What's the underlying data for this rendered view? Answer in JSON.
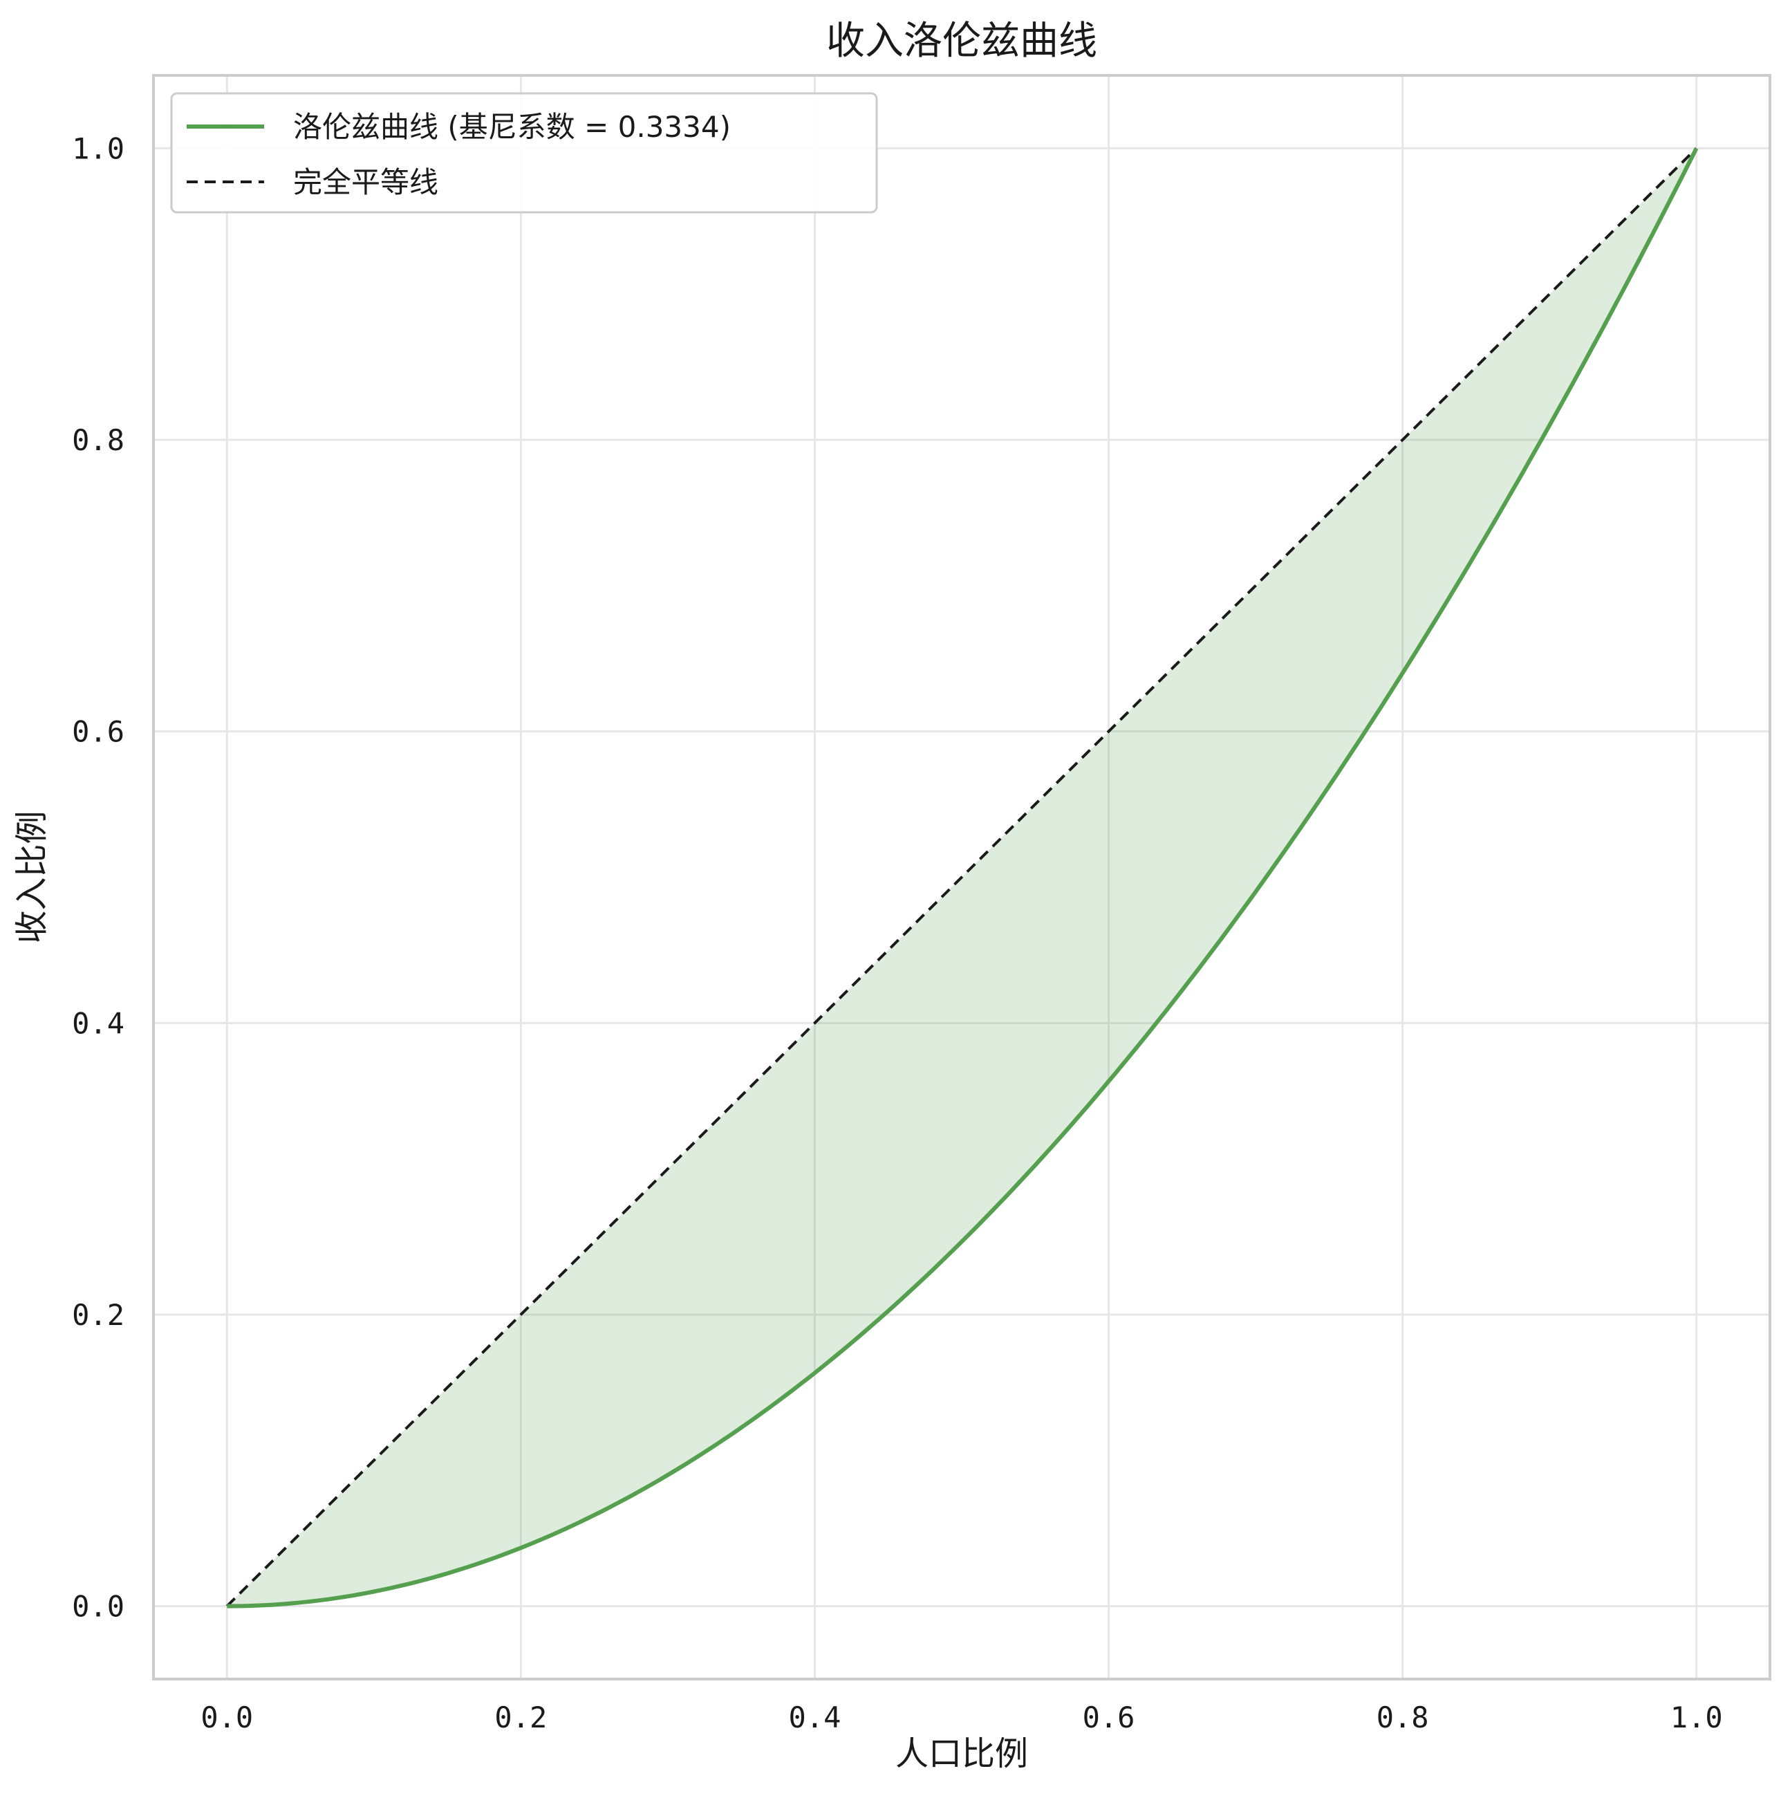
{
  "chart_data": {
    "type": "line",
    "title": "收入洛伦兹曲线",
    "xlabel": "人口比例",
    "ylabel": "收入比例",
    "xlim": [
      -0.05,
      1.05
    ],
    "ylim": [
      -0.05,
      1.05
    ],
    "xticks": [
      "0.0",
      "0.2",
      "0.4",
      "0.6",
      "0.8",
      "1.0"
    ],
    "yticks": [
      "0.0",
      "0.2",
      "0.4",
      "0.6",
      "0.8",
      "1.0"
    ],
    "grid": true,
    "legend_position": "top-left",
    "series": [
      {
        "name": "洛伦兹曲线 (基尼系数 = 0.3334)",
        "style": "solid",
        "color": "#55a04f",
        "x": [
          0.0,
          0.1,
          0.2,
          0.3,
          0.4,
          0.5,
          0.6,
          0.7,
          0.8,
          0.9,
          1.0
        ],
        "y": [
          0.0,
          0.01,
          0.04,
          0.09,
          0.16,
          0.25,
          0.36,
          0.49,
          0.64,
          0.81,
          1.0
        ]
      },
      {
        "name": "完全平等线",
        "style": "dashed",
        "color": "#1a1a1a",
        "x": [
          0.0,
          1.0
        ],
        "y": [
          0.0,
          1.0
        ]
      }
    ],
    "fill_between": {
      "color": "#55a04f",
      "opacity": 0.2
    }
  }
}
